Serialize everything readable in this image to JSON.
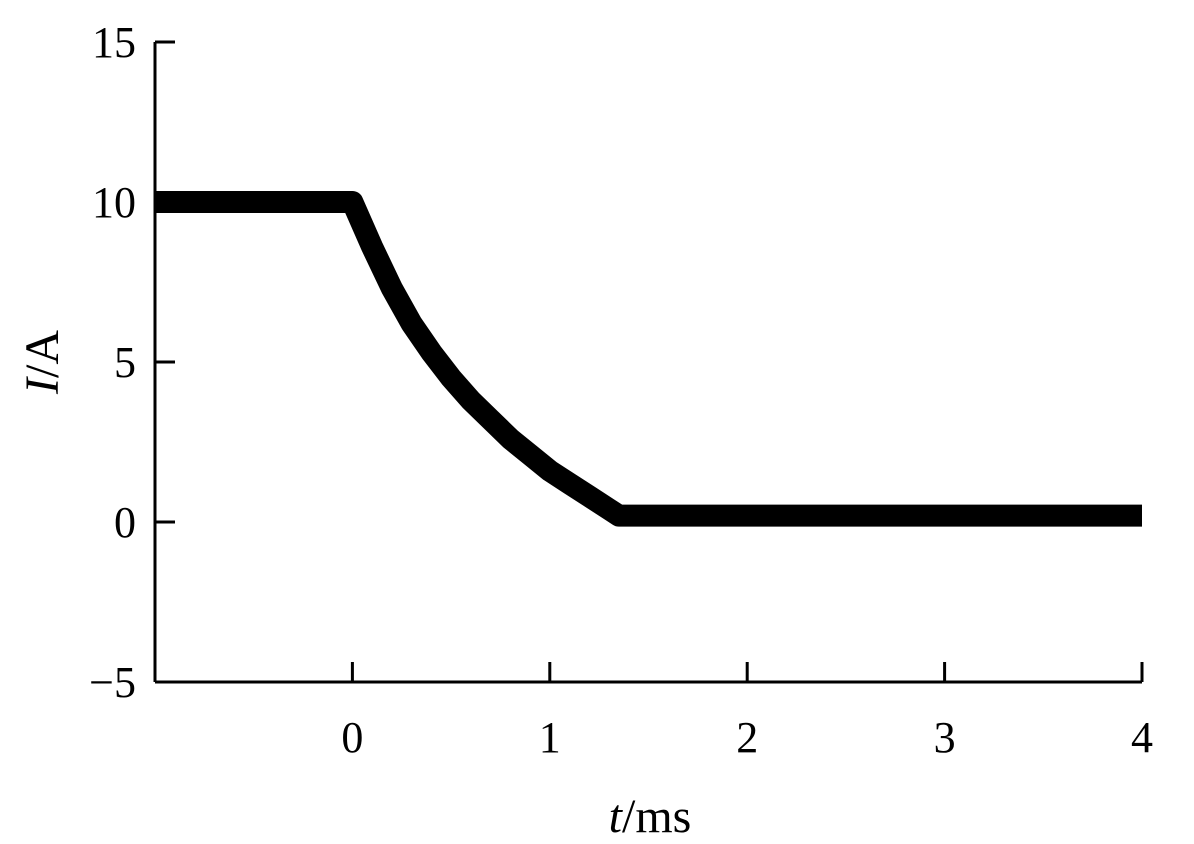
{
  "chart_data": {
    "type": "line",
    "title": "",
    "xlabel_italic": "t",
    "xlabel_unit": "ms",
    "ylabel_italic": "I",
    "ylabel_unit": "A",
    "xlim": [
      -1,
      4
    ],
    "ylim": [
      -5,
      15
    ],
    "xticks": [
      0,
      1,
      2,
      3,
      4
    ],
    "yticks": [
      -5,
      0,
      5,
      10,
      15
    ],
    "xtick_labels": [
      "0",
      "1",
      "2",
      "3",
      "4"
    ],
    "ytick_labels": [
      "−5",
      "0",
      "5",
      "10",
      "15"
    ],
    "grid": false,
    "legend": "none",
    "series": [
      {
        "color": "#000000",
        "x": [
          -1.0,
          -0.5,
          0.0,
          0.1,
          0.2,
          0.3,
          0.4,
          0.5,
          0.6,
          0.7,
          0.8,
          0.9,
          1.0,
          1.1,
          1.2,
          1.3,
          1.35,
          2.0,
          3.0,
          4.0
        ],
        "y": [
          10.0,
          10.0,
          10.0,
          8.6,
          7.3,
          6.2,
          5.3,
          4.5,
          3.8,
          3.2,
          2.6,
          2.1,
          1.6,
          1.2,
          0.8,
          0.4,
          0.2,
          0.2,
          0.2,
          0.2
        ]
      }
    ]
  }
}
